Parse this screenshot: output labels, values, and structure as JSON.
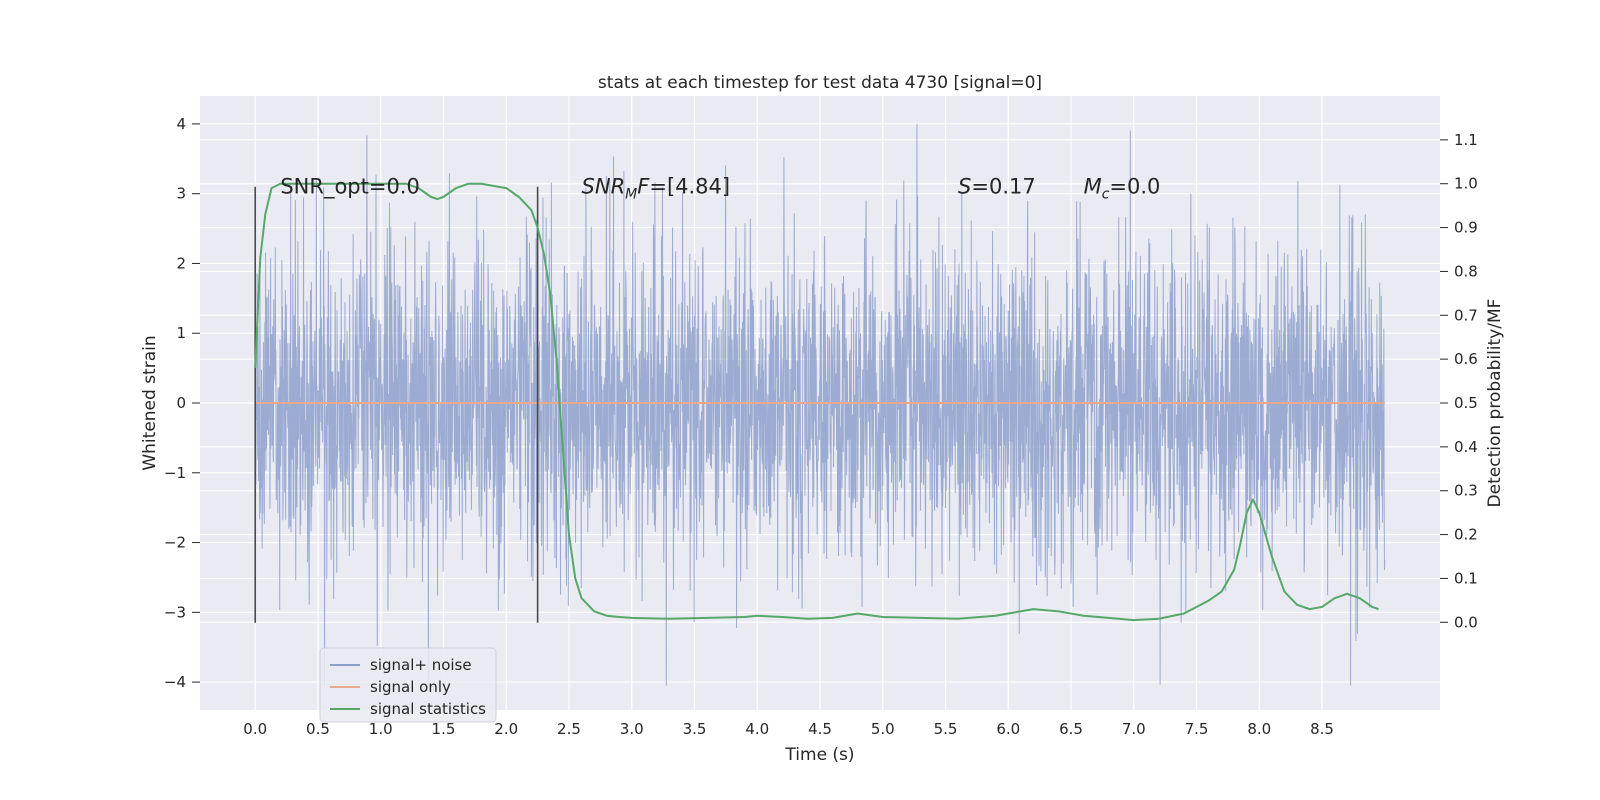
{
  "chart_data": {
    "type": "line",
    "title": "stats at each timestep for test data 4730 [signal=0]",
    "xlabel": "Time (s)",
    "ylabel": "Whitened strain",
    "ylabel_right": "Detection probability/MF",
    "xlim": [
      -0.44,
      9.44
    ],
    "ylim": [
      -4.4,
      4.4
    ],
    "ylim_right": [
      -0.2,
      1.2
    ],
    "x_ticks": [
      "0.0",
      "0.5",
      "1.0",
      "1.5",
      "2.0",
      "2.5",
      "3.0",
      "3.5",
      "4.0",
      "4.5",
      "5.0",
      "5.5",
      "6.0",
      "6.5",
      "7.0",
      "7.5",
      "8.0",
      "8.5"
    ],
    "y_ticks": [
      "4",
      "3",
      "2",
      "1",
      "0",
      "−1",
      "−2",
      "−3",
      "−4"
    ],
    "y_ticks_right": [
      "1.1",
      "1.0",
      "0.9",
      "0.8",
      "0.7",
      "0.6",
      "0.5",
      "0.4",
      "0.3",
      "0.2",
      "0.1",
      "0.0"
    ],
    "grid": true,
    "legend_position": "lower-left",
    "series": [
      {
        "name": "signal+ noise",
        "color": "#8da0cb",
        "note": "dense white noise trace, amplitude roughly ±2.5 with spikes to ±4",
        "x_range": [
          0.0,
          9.0
        ]
      },
      {
        "name": "signal only",
        "color": "#e8a98c",
        "x": [
          0.0,
          9.0
        ],
        "y": [
          0.0,
          0.0
        ]
      },
      {
        "name": "signal statistics",
        "color": "#55a868",
        "axis": "right",
        "x": [
          0.0,
          0.04,
          0.08,
          0.13,
          0.2,
          0.3,
          0.5,
          0.8,
          1.0,
          1.2,
          1.3,
          1.4,
          1.45,
          1.5,
          1.6,
          1.7,
          1.8,
          2.0,
          2.1,
          2.2,
          2.25,
          2.3,
          2.35,
          2.4,
          2.45,
          2.5,
          2.55,
          2.6,
          2.65,
          2.7,
          2.8,
          2.9,
          3.0,
          3.3,
          3.6,
          3.9,
          4.0,
          4.2,
          4.4,
          4.6,
          4.8,
          5.0,
          5.3,
          5.6,
          5.9,
          6.0,
          6.2,
          6.4,
          6.6,
          6.8,
          7.0,
          7.2,
          7.4,
          7.6,
          7.7,
          7.8,
          7.85,
          7.9,
          7.95,
          8.0,
          8.1,
          8.2,
          8.3,
          8.4,
          8.5,
          8.6,
          8.7,
          8.8,
          8.9,
          8.95
        ],
        "y": [
          0.58,
          0.83,
          0.93,
          0.99,
          1.0,
          1.0,
          1.0,
          1.0,
          1.0,
          1.0,
          0.99,
          0.97,
          0.965,
          0.97,
          0.99,
          1.0,
          1.0,
          0.99,
          0.97,
          0.94,
          0.9,
          0.84,
          0.75,
          0.6,
          0.4,
          0.2,
          0.1,
          0.055,
          0.04,
          0.025,
          0.015,
          0.012,
          0.01,
          0.008,
          0.01,
          0.012,
          0.015,
          0.012,
          0.008,
          0.01,
          0.02,
          0.012,
          0.01,
          0.008,
          0.015,
          0.02,
          0.03,
          0.025,
          0.015,
          0.01,
          0.005,
          0.008,
          0.02,
          0.05,
          0.07,
          0.12,
          0.18,
          0.25,
          0.28,
          0.25,
          0.15,
          0.07,
          0.04,
          0.03,
          0.035,
          0.055,
          0.065,
          0.055,
          0.035,
          0.03
        ]
      }
    ],
    "vlines": [
      {
        "x": 0.0,
        "y_range": [
          -3.15,
          3.1
        ]
      },
      {
        "x": 2.25,
        "y_range": [
          -3.15,
          3.1
        ]
      }
    ],
    "annotations": [
      {
        "kind": "plain",
        "x": 0.2,
        "y": 3.1,
        "text": "SNR_opt=0.0"
      },
      {
        "kind": "sub",
        "x": 2.6,
        "y": 3.1,
        "base": "SNR",
        "sub": "M",
        "tail": "F",
        "rest": "=[4.84]"
      },
      {
        "kind": "ital",
        "x": 5.6,
        "y": 3.1,
        "base": "S",
        "rest": "=0.17"
      },
      {
        "kind": "sub",
        "x": 6.6,
        "y": 3.1,
        "base": "M",
        "sub": "c",
        "tail": "",
        "rest": "=0.0"
      }
    ]
  }
}
